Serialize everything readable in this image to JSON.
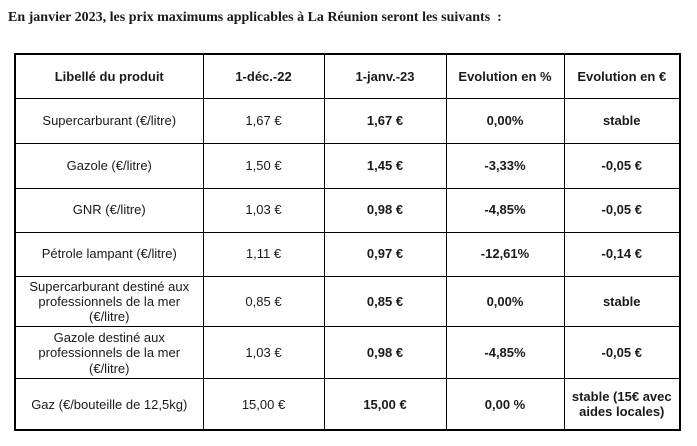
{
  "page": {
    "intro": "En janvier 2023, les prix maximums applicables à La Réunion seront les suivants  :"
  },
  "table": {
    "headers": [
      "Libellé du produit",
      "1-déc.-22",
      "1-janv.-23",
      "Evolution en %",
      "Evolution en €"
    ],
    "rows": [
      {
        "label": "Supercarburant  (€/litre)",
        "dec22": "1,67 €",
        "jan23": "1,67 €",
        "evol_pct": "0,00%",
        "evol_eur": "stable"
      },
      {
        "label": "Gazole  (€/litre)",
        "dec22": "1,50 €",
        "jan23": "1,45 €",
        "evol_pct": "-3,33%",
        "evol_eur": "-0,05 €"
      },
      {
        "label": "GNR (€/litre)",
        "dec22": "1,03 €",
        "jan23": "0,98 €",
        "evol_pct": "-4,85%",
        "evol_eur": "-0,05 €"
      },
      {
        "label": "Pétrole lampant (€/litre)",
        "dec22": "1,11 €",
        "jan23": "0,97 €",
        "evol_pct": "-12,61%",
        "evol_eur": "-0,14 €"
      },
      {
        "label": "Supercarburant destiné aux professionnels de la mer (€/litre)",
        "dec22": "0,85 €",
        "jan23": "0,85 €",
        "evol_pct": "0,00%",
        "evol_eur": "stable"
      },
      {
        "label": "Gazole destiné aux professionnels de la mer (€/litre)",
        "dec22": "1,03 €",
        "jan23": "0,98 €",
        "evol_pct": "-4,85%",
        "evol_eur": "-0,05 €"
      },
      {
        "label": "Gaz (€/bouteille de 12,5kg)",
        "dec22": "15,00 €",
        "jan23": "15,00 €",
        "evol_pct": "0,00 %",
        "evol_eur": "stable (15€ avec aides locales)"
      }
    ]
  },
  "colors": {
    "text": "#1a1a1a",
    "border": "#000000",
    "background": "#ffffff"
  }
}
